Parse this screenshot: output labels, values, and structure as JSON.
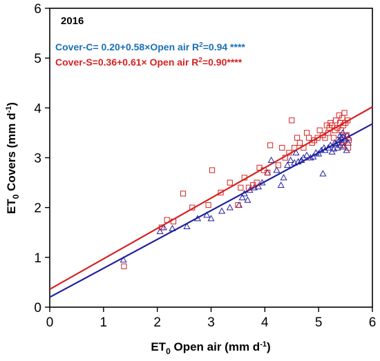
{
  "chart_data": {
    "type": "scatter",
    "title": "",
    "panel_label": "2016",
    "xlabel": {
      "main": "ET",
      "sub": "0",
      "rest": " Open air (mm d",
      "sup": "-1",
      "end": ")"
    },
    "ylabel": {
      "main": "ET",
      "sub": "0",
      "rest": " Covers (mm d",
      "sup": "-1",
      "end": ")"
    },
    "xlim": [
      0,
      6
    ],
    "ylim": [
      0,
      6
    ],
    "xticks": [
      "0",
      "1",
      "2",
      "3",
      "4",
      "5",
      "6"
    ],
    "yticks": [
      "0",
      "1",
      "2",
      "3",
      "4",
      "5",
      "6"
    ],
    "grid": false,
    "colors": {
      "cover_c": "#1f1f9e",
      "cover_s": "#d62020",
      "cover_c_text": "#1a6fb5",
      "cover_s_text": "#d62020"
    },
    "annotations": [
      {
        "pre": "Cover-C= 0.20+0.58×Open air  R",
        "sup": "2",
        "post": "=0.94 ****"
      },
      {
        "pre": "Cover-S=0.36+0.61× Open air   R",
        "sup": "2",
        "post": "=0.90****"
      }
    ],
    "fits": [
      {
        "intercept": 0.2,
        "slope": 0.58,
        "series": "Cover-C"
      },
      {
        "intercept": 0.36,
        "slope": 0.61,
        "series": "Cover-S"
      }
    ],
    "series": [
      {
        "marker": "triangle",
        "points": [
          [
            1.37,
            0.95
          ],
          [
            2.05,
            1.52
          ],
          [
            2.12,
            1.6
          ],
          [
            2.28,
            1.58
          ],
          [
            2.55,
            1.62
          ],
          [
            2.75,
            1.78
          ],
          [
            2.92,
            1.85
          ],
          [
            3.0,
            1.78
          ],
          [
            3.2,
            1.93
          ],
          [
            3.35,
            2.0
          ],
          [
            3.52,
            2.05
          ],
          [
            3.58,
            2.2
          ],
          [
            3.62,
            2.28
          ],
          [
            3.68,
            2.15
          ],
          [
            3.72,
            2.35
          ],
          [
            3.8,
            2.4
          ],
          [
            3.88,
            2.42
          ],
          [
            3.95,
            2.5
          ],
          [
            4.05,
            2.7
          ],
          [
            4.12,
            2.95
          ],
          [
            4.22,
            2.75
          ],
          [
            4.3,
            2.45
          ],
          [
            4.35,
            2.6
          ],
          [
            4.42,
            2.85
          ],
          [
            4.48,
            2.95
          ],
          [
            4.55,
            2.9
          ],
          [
            4.58,
            3.1
          ],
          [
            4.62,
            2.92
          ],
          [
            4.68,
            2.95
          ],
          [
            4.72,
            3.0
          ],
          [
            4.78,
            3.05
          ],
          [
            4.85,
            3.0
          ],
          [
            4.9,
            3.02
          ],
          [
            4.95,
            3.1
          ],
          [
            5.0,
            3.08
          ],
          [
            5.05,
            3.15
          ],
          [
            5.08,
            2.68
          ],
          [
            5.1,
            3.2
          ],
          [
            5.12,
            3.15
          ],
          [
            5.18,
            3.2
          ],
          [
            5.22,
            3.25
          ],
          [
            5.25,
            3.12
          ],
          [
            5.28,
            3.18
          ],
          [
            5.3,
            3.3
          ],
          [
            5.32,
            3.28
          ],
          [
            5.35,
            3.2
          ],
          [
            5.38,
            3.35
          ],
          [
            5.4,
            3.25
          ],
          [
            5.42,
            3.4
          ],
          [
            5.44,
            3.3
          ],
          [
            5.45,
            3.42
          ],
          [
            5.46,
            3.22
          ],
          [
            5.48,
            3.35
          ],
          [
            5.5,
            3.38
          ],
          [
            5.52,
            3.15
          ],
          [
            5.53,
            3.45
          ],
          [
            5.55,
            3.3
          ],
          [
            5.56,
            3.4
          ],
          [
            5.4,
            3.45
          ],
          [
            5.45,
            3.5
          ]
        ]
      },
      {
        "marker": "square",
        "points": [
          [
            1.38,
            0.82
          ],
          [
            2.08,
            1.6
          ],
          [
            2.18,
            1.75
          ],
          [
            2.3,
            1.72
          ],
          [
            2.48,
            2.28
          ],
          [
            2.65,
            2.0
          ],
          [
            2.95,
            2.05
          ],
          [
            3.02,
            2.75
          ],
          [
            3.18,
            2.3
          ],
          [
            3.35,
            2.5
          ],
          [
            3.5,
            2.05
          ],
          [
            3.55,
            2.4
          ],
          [
            3.62,
            2.6
          ],
          [
            3.7,
            2.4
          ],
          [
            3.78,
            2.45
          ],
          [
            3.85,
            2.5
          ],
          [
            3.9,
            2.8
          ],
          [
            3.98,
            2.75
          ],
          [
            4.05,
            2.7
          ],
          [
            4.1,
            3.25
          ],
          [
            4.25,
            2.85
          ],
          [
            4.32,
            3.2
          ],
          [
            4.38,
            3.0
          ],
          [
            4.45,
            3.1
          ],
          [
            4.5,
            3.75
          ],
          [
            4.55,
            3.2
          ],
          [
            4.6,
            3.4
          ],
          [
            4.65,
            3.3
          ],
          [
            4.72,
            3.2
          ],
          [
            4.78,
            3.5
          ],
          [
            4.82,
            3.4
          ],
          [
            4.88,
            3.3
          ],
          [
            4.92,
            3.35
          ],
          [
            4.98,
            3.4
          ],
          [
            5.02,
            3.55
          ],
          [
            5.08,
            3.45
          ],
          [
            5.12,
            3.4
          ],
          [
            5.15,
            3.65
          ],
          [
            5.18,
            3.5
          ],
          [
            5.2,
            3.6
          ],
          [
            5.22,
            3.7
          ],
          [
            5.25,
            3.65
          ],
          [
            5.28,
            3.4
          ],
          [
            5.3,
            3.55
          ],
          [
            5.32,
            3.75
          ],
          [
            5.35,
            3.6
          ],
          [
            5.38,
            3.85
          ],
          [
            5.4,
            3.7
          ],
          [
            5.42,
            3.55
          ],
          [
            5.44,
            3.8
          ],
          [
            5.46,
            3.65
          ],
          [
            5.48,
            3.9
          ],
          [
            5.5,
            3.7
          ],
          [
            5.52,
            3.45
          ],
          [
            5.54,
            3.75
          ],
          [
            5.55,
            3.2
          ],
          [
            5.56,
            3.35
          ],
          [
            5.45,
            3.25
          ]
        ]
      }
    ]
  }
}
